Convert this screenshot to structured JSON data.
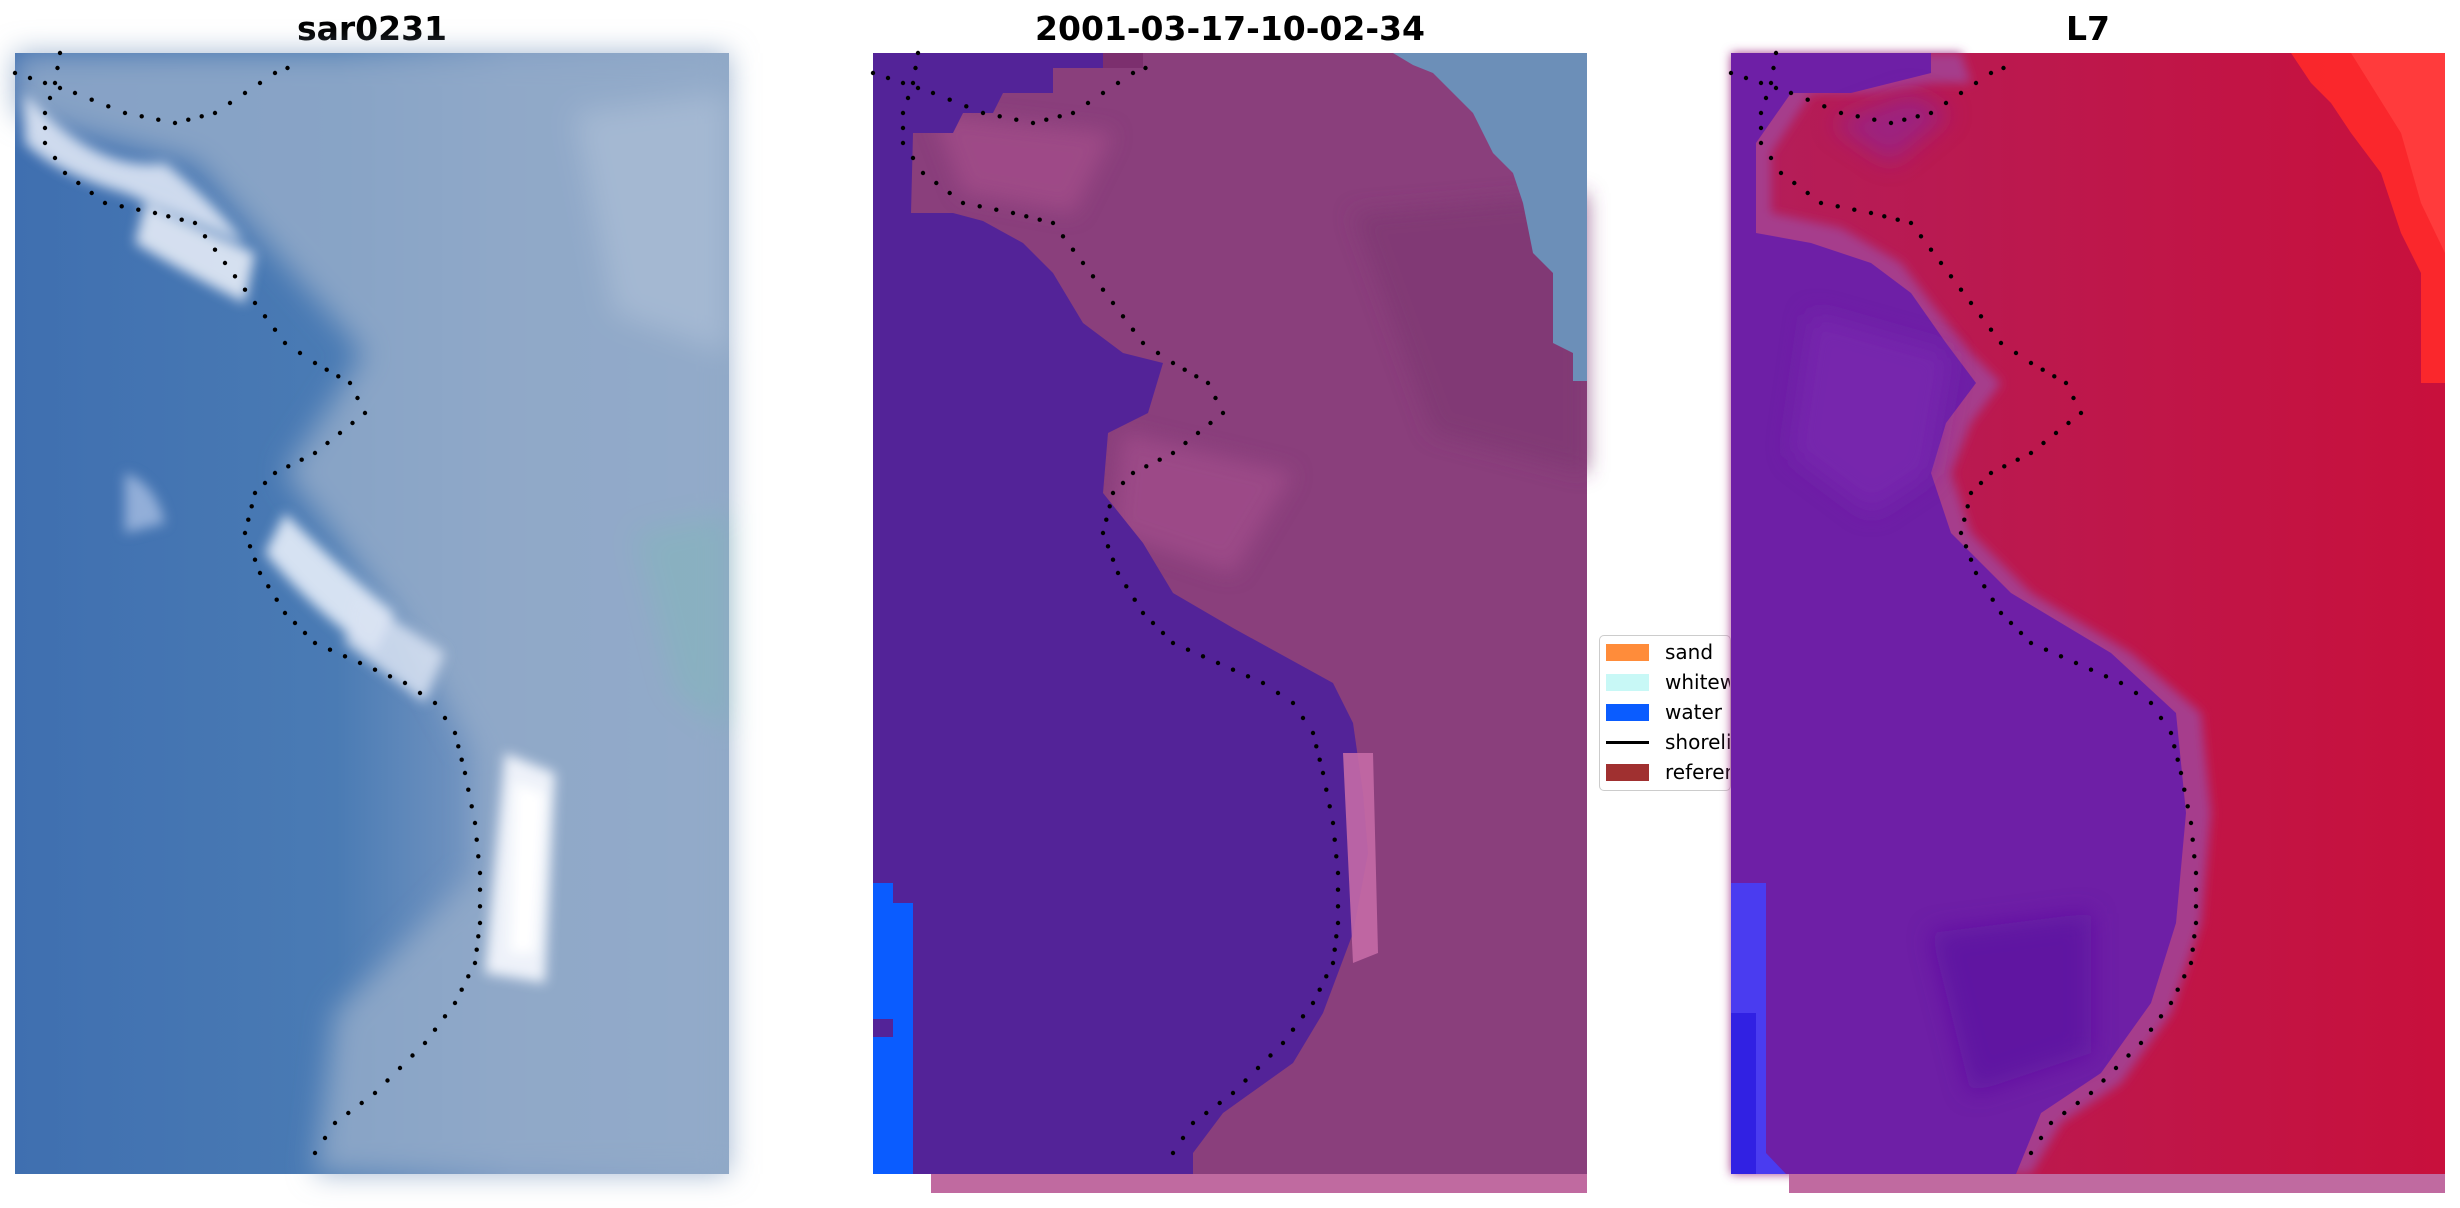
{
  "figure": {
    "panels": [
      {
        "id": "sar0231",
        "title": "sar0231",
        "kind": "rgb-image"
      },
      {
        "id": "classified",
        "title": "2001-03-17-10-02-34",
        "kind": "classification"
      },
      {
        "id": "l7",
        "title": "L7",
        "kind": "probability-map"
      }
    ],
    "legend": {
      "entries": [
        {
          "label": "sand",
          "color": "#ff8c3a",
          "type": "patch"
        },
        {
          "label": "whitewater",
          "color": "#c8f8f6",
          "type": "patch"
        },
        {
          "label": "water",
          "color": "#0a5cff",
          "type": "patch"
        },
        {
          "label": "shoreline",
          "color": "#000000",
          "type": "line"
        },
        {
          "label": "reference",
          "color": "#a03030",
          "type": "patch"
        }
      ]
    },
    "colors": {
      "sea_blue": "#4a7bb4",
      "land_grey": "#8fa6c8",
      "whitewater": "#e4ecf6",
      "classified_water": "#532398",
      "classified_land": "#8a3f7c",
      "classified_foam": "#b65a98",
      "classified_edge": "#6c8fb8",
      "classified_water_patch": "#0a5cff",
      "l7_sea": "#6e1fa6",
      "l7_land": "#c81545",
      "l7_edge": "#a63c8c",
      "l7_bright": "#ff2a2a",
      "bottom_strip": "#c06aa0"
    }
  }
}
